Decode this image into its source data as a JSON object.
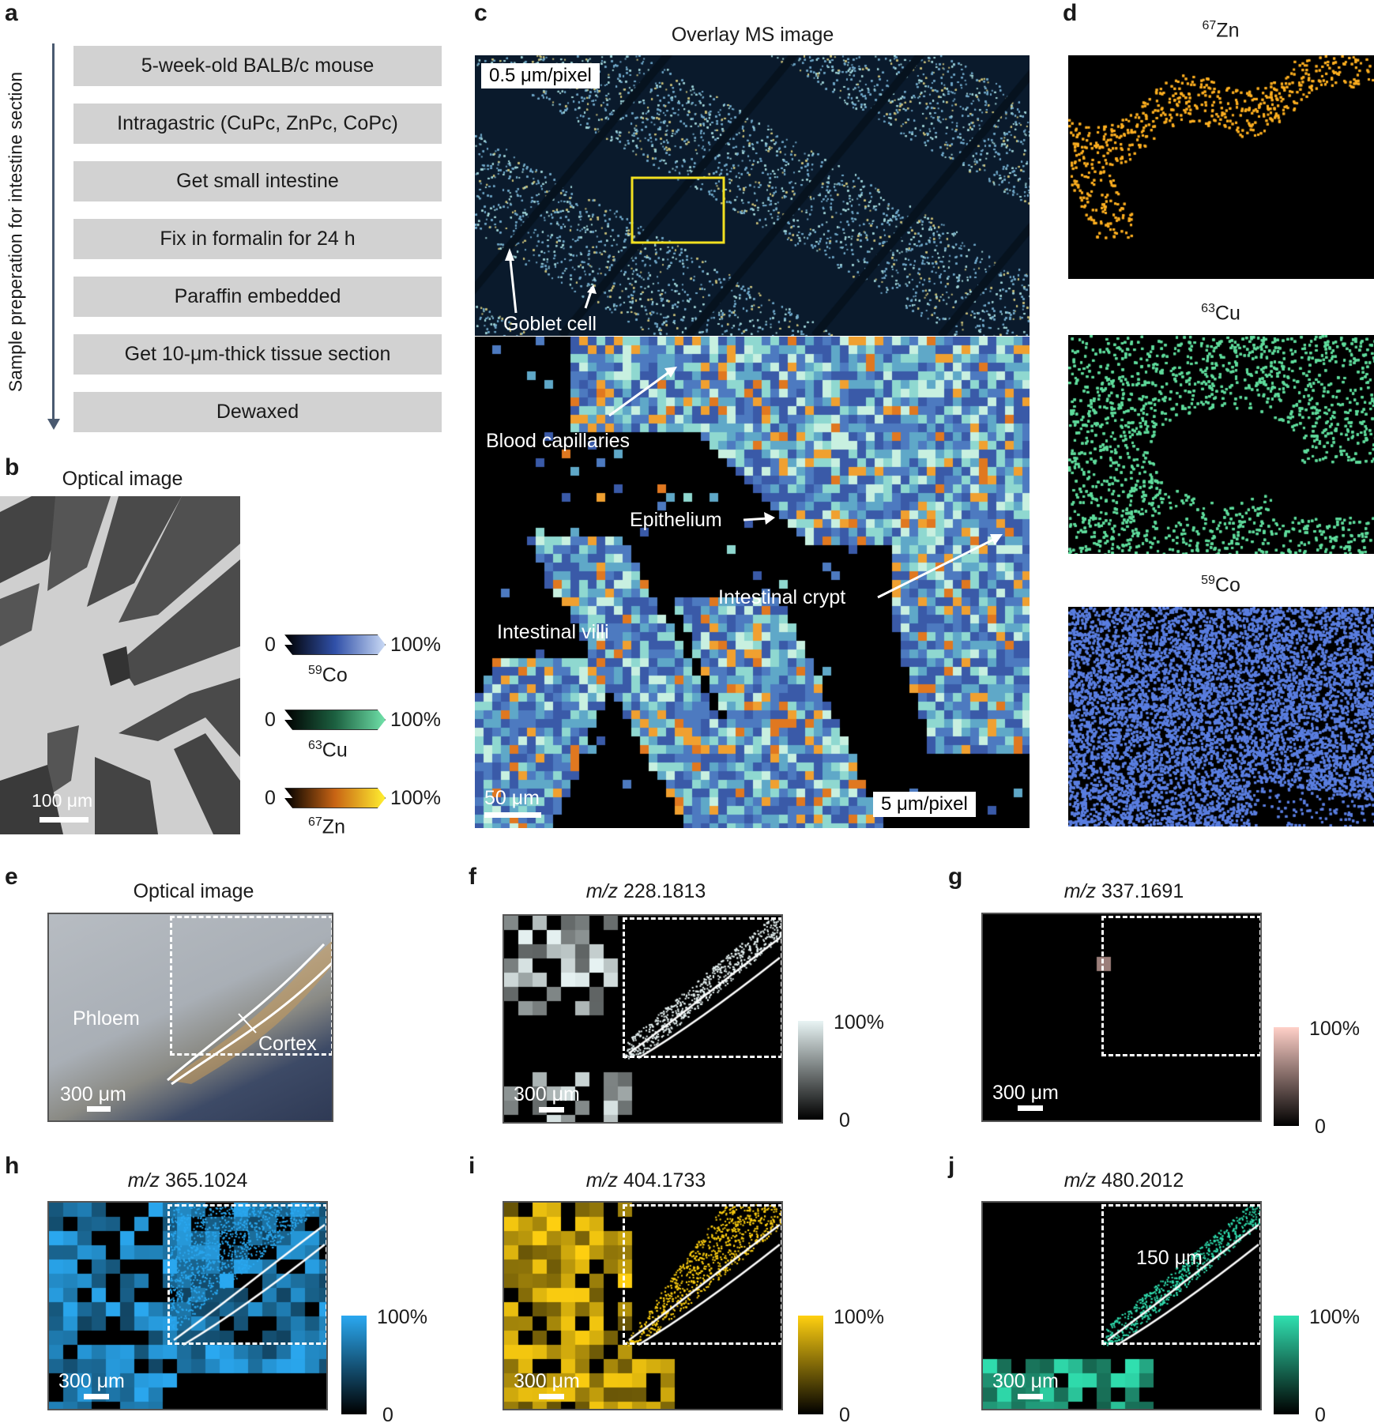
{
  "panel_letters": {
    "a": "a",
    "b": "b",
    "c": "c",
    "d": "d",
    "e": "e",
    "f": "f",
    "g": "g",
    "h": "h",
    "i": "i",
    "j": "j"
  },
  "a": {
    "side_label": "Sample preperation for intestine section",
    "steps": [
      "5-week-old BALB/c mouse",
      "Intragastric (CuPc, ZnPc, CoPc)",
      "Get small intestine",
      "Fix in formalin for 24 h",
      "Paraffin embedded",
      "Get 10-μm-thick tissue section",
      "Dewaxed"
    ]
  },
  "b": {
    "title": "Optical image",
    "scale": "100 μm"
  },
  "legend": [
    {
      "min": "0",
      "max": "100%",
      "iso_mass": "59",
      "iso_el": "Co",
      "from": "#000000",
      "to": "#c8d8f4"
    },
    {
      "min": "0",
      "max": "100%",
      "iso_mass": "63",
      "iso_el": "Cu",
      "from": "#000000",
      "to": "#6fe0a8"
    },
    {
      "min": "0",
      "max": "100%",
      "iso_mass": "67",
      "iso_el": "Zn",
      "from": "#000000",
      "mid": "#c86414",
      "to": "#ffee30"
    }
  ],
  "c": {
    "title": "Overlay MS image",
    "res_top": "0.5 μm/pixel",
    "goblet": "Goblet cell",
    "blood": "Blood capillaries",
    "epithelium": "Epithelium",
    "crypt": "Intestinal crypt",
    "villi": "Intestinal villi",
    "scale": "50 μm",
    "res_bottom": "5 μm/pixel"
  },
  "d": [
    {
      "mass": "67",
      "el": "Zn",
      "color": "#ffb020"
    },
    {
      "mass": "63",
      "el": "Cu",
      "color": "#5fdc9c"
    },
    {
      "mass": "59",
      "el": "Co",
      "color": "#5a7ee0"
    }
  ],
  "e": {
    "title": "Optical image",
    "phloem": "Phloem",
    "cortex": "Cortex",
    "scale": "300 μm"
  },
  "mz_panels": [
    {
      "id": "f",
      "prefix": "m/z",
      "value": "228.1813",
      "scale": "300 μm",
      "cmax": "100%",
      "cmin": "0",
      "color": "#e8f4f4"
    },
    {
      "id": "g",
      "prefix": "m/z",
      "value": "337.1691",
      "scale": "300 μm",
      "cmax": "100%",
      "cmin": "0",
      "color": "#ffd0c8"
    },
    {
      "id": "h",
      "prefix": "m/z",
      "value": "365.1024",
      "scale": "300 μm",
      "cmax": "100%",
      "cmin": "0",
      "color": "#2aa8f0"
    },
    {
      "id": "i",
      "prefix": "m/z",
      "value": "404.1733",
      "scale": "300 μm",
      "cmax": "100%",
      "cmin": "0",
      "color": "#ffd010"
    },
    {
      "id": "j",
      "prefix": "m/z",
      "value": "480.2012",
      "scale": "300 μm",
      "cmax": "100%",
      "cmin": "0",
      "color": "#30e0b0",
      "note": "150 μm"
    }
  ]
}
